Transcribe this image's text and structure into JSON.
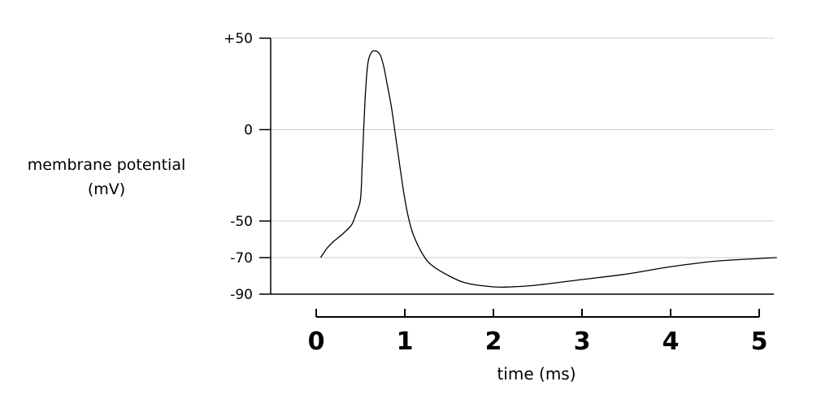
{
  "chart_data": {
    "type": "line",
    "xlabel": "time (ms)",
    "ylabel_lines": [
      "membrane potential",
      "(mV)"
    ],
    "xlim": [
      0,
      5.2
    ],
    "ylim": [
      -90,
      50
    ],
    "x_ticks": [
      0,
      1,
      2,
      3,
      4,
      5
    ],
    "y_ticks": [
      {
        "value": 50,
        "label": "+50"
      },
      {
        "value": 0,
        "label": "0"
      },
      {
        "value": -50,
        "label": "-50"
      },
      {
        "value": -70,
        "label": "-70"
      },
      {
        "value": -90,
        "label": "-90"
      }
    ],
    "grid": true,
    "colors": {
      "line": "#000000",
      "grid": "#cfcfcf",
      "axis": "#000000"
    },
    "series": [
      {
        "x": [
          0.05,
          0.12,
          0.2,
          0.3,
          0.4,
          0.45,
          0.5,
          0.52,
          0.55,
          0.58,
          0.62,
          0.67,
          0.72,
          0.76,
          0.8,
          0.85,
          0.9,
          0.95,
          1.0,
          1.05,
          1.1,
          1.2,
          1.3,
          1.5,
          1.7,
          2.0,
          2.2,
          2.5,
          3.0,
          3.5,
          4.0,
          4.5,
          5.0,
          5.2
        ],
        "y": [
          -70,
          -65,
          -61,
          -57,
          -52,
          -46,
          -38,
          -18,
          15,
          35,
          42,
          43,
          41,
          35,
          25,
          12,
          -5,
          -22,
          -38,
          -50,
          -58,
          -68,
          -74,
          -80,
          -84,
          -86,
          -86,
          -85,
          -82,
          -79,
          -75,
          -72,
          -70.5,
          -70
        ]
      }
    ]
  }
}
